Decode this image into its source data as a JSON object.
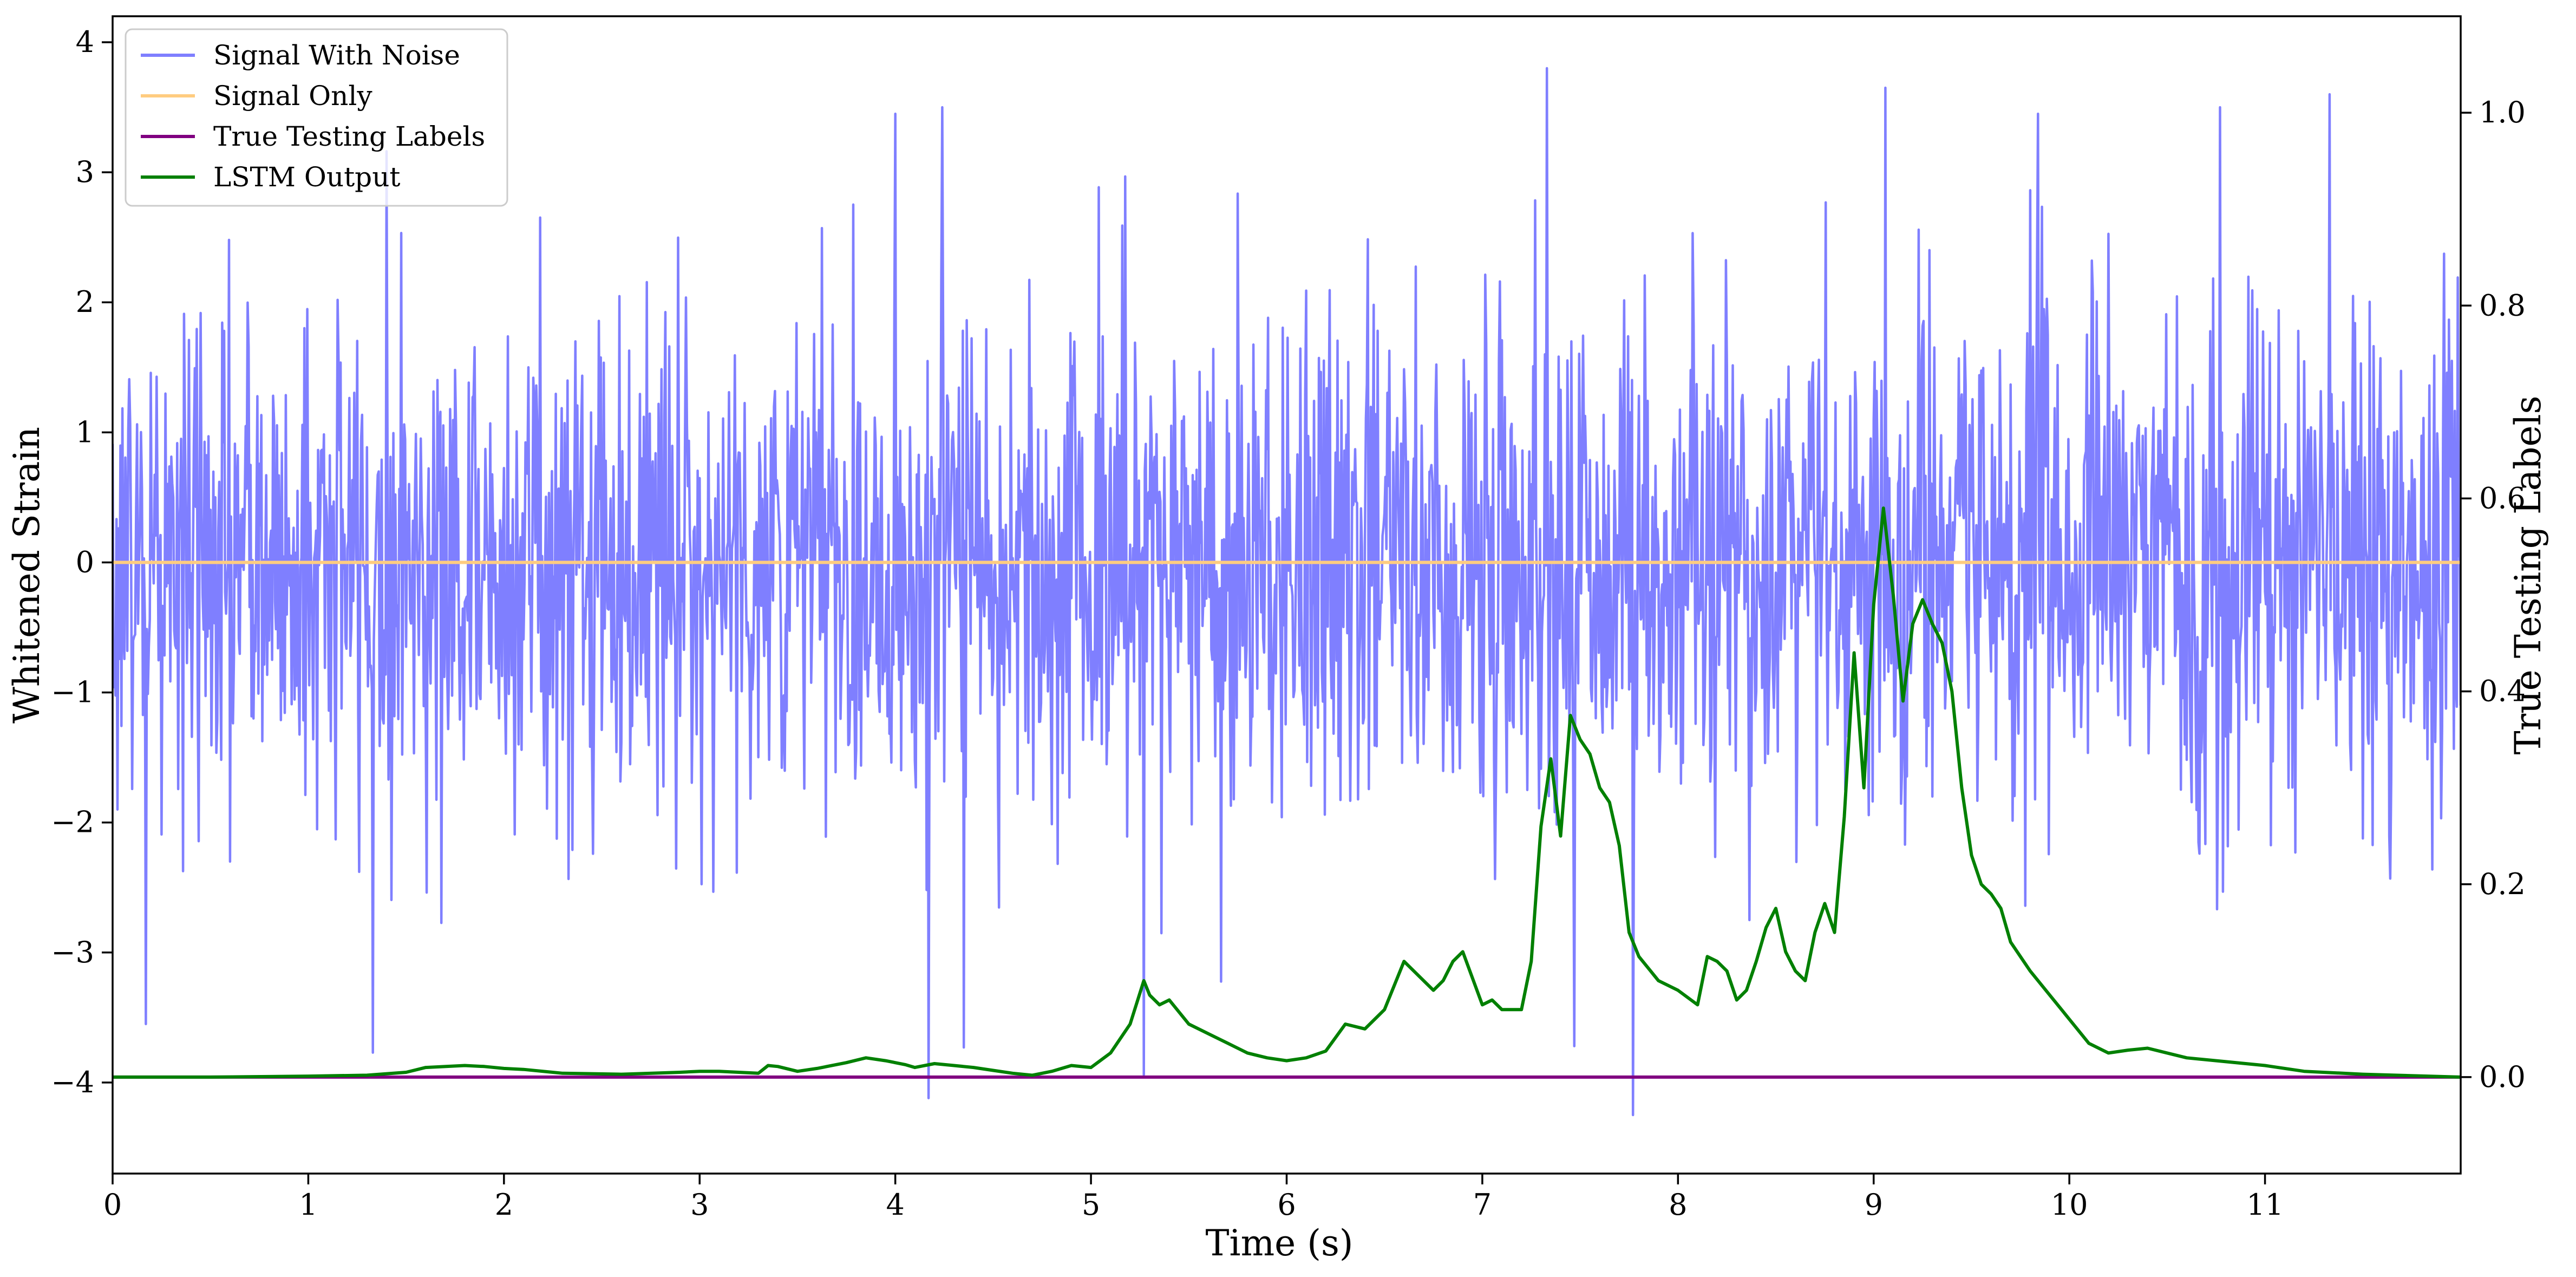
{
  "chart_data": {
    "type": "line",
    "xlabel": "Time (s)",
    "ylabel": "Whitened Strain",
    "ylabel_right": "True Testing Labels",
    "xlim": [
      0,
      12
    ],
    "ylim": [
      -4.7,
      4.2
    ],
    "ylim_right": [
      -0.1,
      1.1
    ],
    "x_ticks": [
      0,
      1,
      2,
      3,
      4,
      5,
      6,
      7,
      8,
      9,
      10,
      11
    ],
    "x_tick_labels": [
      "0",
      "1",
      "2",
      "3",
      "4",
      "5",
      "6",
      "7",
      "8",
      "9",
      "10",
      "11"
    ],
    "y_ticks": [
      -4,
      -3,
      -2,
      -1,
      0,
      1,
      2,
      3,
      4
    ],
    "y_tick_labels": [
      "−4",
      "−3",
      "−2",
      "−1",
      "0",
      "1",
      "2",
      "3",
      "4"
    ],
    "y_ticks_right": [
      0,
      0.2,
      0.4,
      0.6,
      0.8,
      1.0
    ],
    "y_tick_labels_right": [
      "0.0",
      "0.2",
      "0.4",
      "0.6",
      "0.8",
      "1.0"
    ],
    "grid": false,
    "legend_position": "top-left",
    "series": [
      {
        "name": "Signal With Noise",
        "axis": "left",
        "color": "#7f7fff",
        "kind": "noise",
        "sample_rate_hz": 200,
        "typical_envelope": [
          -2.6,
          2.7
        ],
        "notable_spikes": [
          {
            "x": 0.17,
            "y": -3.55
          },
          {
            "x": 1.33,
            "y": -3.77
          },
          {
            "x": 4.17,
            "y": -4.12
          },
          {
            "x": 4.35,
            "y": -3.73
          },
          {
            "x": 5.27,
            "y": -3.94
          },
          {
            "x": 7.33,
            "y": 3.8
          },
          {
            "x": 7.47,
            "y": -3.72
          },
          {
            "x": 7.77,
            "y": -4.25
          },
          {
            "x": 9.06,
            "y": 3.65
          },
          {
            "x": 11.33,
            "y": 3.6
          },
          {
            "x": 4.0,
            "y": 3.45
          },
          {
            "x": 4.24,
            "y": 3.5
          },
          {
            "x": 9.84,
            "y": 3.45
          },
          {
            "x": 10.77,
            "y": 3.5
          }
        ]
      },
      {
        "name": "Signal Only",
        "axis": "left",
        "color": "#ffcc80",
        "x": [
          0,
          12
        ],
        "y": [
          0,
          0
        ]
      },
      {
        "name": "True Testing Labels",
        "axis": "right",
        "color": "#800080",
        "x": [
          0,
          12
        ],
        "y": [
          0,
          0
        ]
      },
      {
        "name": "LSTM Output",
        "axis": "right",
        "color": "#008000",
        "x": [
          0,
          0.5,
          1.0,
          1.3,
          1.5,
          1.6,
          1.8,
          1.9,
          2.0,
          2.1,
          2.3,
          2.6,
          2.9,
          3.0,
          3.1,
          3.2,
          3.3,
          3.35,
          3.4,
          3.5,
          3.6,
          3.75,
          3.85,
          3.95,
          4.05,
          4.1,
          4.2,
          4.3,
          4.4,
          4.5,
          4.6,
          4.7,
          4.8,
          4.9,
          5.0,
          5.1,
          5.2,
          5.27,
          5.3,
          5.35,
          5.4,
          5.5,
          5.6,
          5.7,
          5.8,
          5.9,
          6.0,
          6.1,
          6.2,
          6.3,
          6.4,
          6.5,
          6.6,
          6.65,
          6.75,
          6.8,
          6.85,
          6.9,
          7.0,
          7.05,
          7.1,
          7.2,
          7.25,
          7.3,
          7.35,
          7.4,
          7.45,
          7.5,
          7.55,
          7.6,
          7.65,
          7.7,
          7.75,
          7.8,
          7.9,
          8.0,
          8.1,
          8.15,
          8.2,
          8.25,
          8.3,
          8.35,
          8.4,
          8.45,
          8.5,
          8.55,
          8.6,
          8.65,
          8.7,
          8.75,
          8.8,
          8.85,
          8.9,
          8.95,
          9.0,
          9.05,
          9.1,
          9.15,
          9.2,
          9.25,
          9.3,
          9.35,
          9.4,
          9.45,
          9.5,
          9.55,
          9.6,
          9.65,
          9.7,
          9.8,
          9.9,
          10.0,
          10.1,
          10.2,
          10.3,
          10.4,
          10.5,
          10.6,
          10.8,
          11.0,
          11.2,
          11.5,
          12.0
        ],
        "y": [
          0.0,
          0.0,
          0.001,
          0.002,
          0.005,
          0.01,
          0.012,
          0.011,
          0.009,
          0.008,
          0.004,
          0.003,
          0.005,
          0.006,
          0.006,
          0.005,
          0.004,
          0.012,
          0.011,
          0.006,
          0.009,
          0.015,
          0.02,
          0.017,
          0.013,
          0.01,
          0.014,
          0.012,
          0.01,
          0.007,
          0.004,
          0.002,
          0.006,
          0.012,
          0.01,
          0.025,
          0.055,
          0.1,
          0.085,
          0.075,
          0.08,
          0.055,
          0.045,
          0.035,
          0.025,
          0.02,
          0.017,
          0.02,
          0.027,
          0.055,
          0.05,
          0.07,
          0.12,
          0.11,
          0.09,
          0.1,
          0.12,
          0.13,
          0.075,
          0.08,
          0.07,
          0.07,
          0.12,
          0.26,
          0.33,
          0.25,
          0.375,
          0.35,
          0.335,
          0.3,
          0.285,
          0.24,
          0.15,
          0.125,
          0.1,
          0.09,
          0.075,
          0.125,
          0.12,
          0.11,
          0.08,
          0.09,
          0.12,
          0.155,
          0.175,
          0.13,
          0.11,
          0.1,
          0.15,
          0.18,
          0.15,
          0.27,
          0.44,
          0.3,
          0.49,
          0.59,
          0.5,
          0.39,
          0.47,
          0.495,
          0.47,
          0.45,
          0.4,
          0.3,
          0.23,
          0.2,
          0.19,
          0.175,
          0.14,
          0.11,
          0.085,
          0.06,
          0.035,
          0.025,
          0.028,
          0.03,
          0.025,
          0.02,
          0.016,
          0.012,
          0.006,
          0.003,
          0.0
        ]
      }
    ]
  }
}
